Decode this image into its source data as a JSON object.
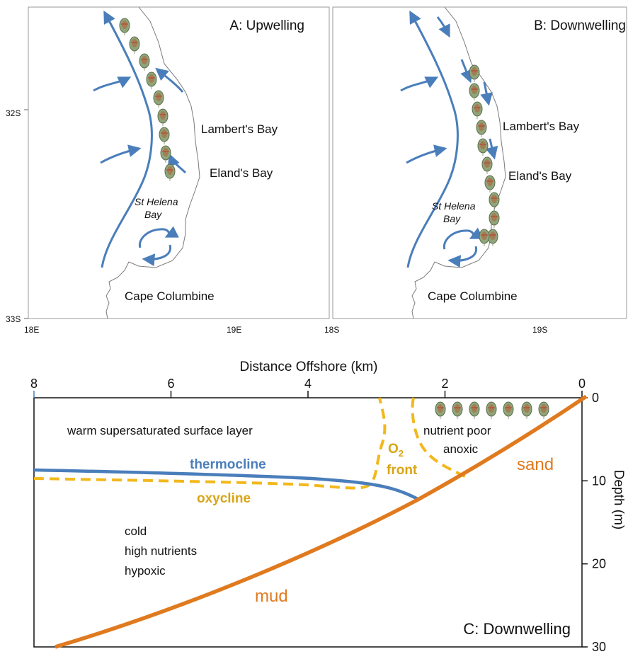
{
  "colors": {
    "current": "#4a7ebb",
    "coast": "#7a7a7a",
    "frame": "#9a9a9a",
    "thermocline": "#4a7ebb",
    "oxy": "#f2b81c",
    "label_gold": "#d9a514",
    "seabed": "#e07a1f",
    "sand_text": "#e07a1f",
    "thermo_text": "#4a7ebb"
  },
  "icons": {
    "organism": "phytoplankton-cell-icon"
  },
  "panel_a": {
    "title": "A: Upwelling",
    "lat_top": "32S",
    "lat_bottom": "33S",
    "lon_left": "18E",
    "lon_right": "19E",
    "places": {
      "lamberts": "Lambert's Bay",
      "elands": "Eland's Bay",
      "st_helena_1": "St Helena",
      "st_helena_2": "Bay",
      "cape": "Cape Columbine"
    },
    "organism_count": 9
  },
  "panel_b": {
    "title": "B: Downwelling",
    "lon_left": "18S",
    "lon_right": "19S",
    "places": {
      "lamberts": "Lambert's Bay",
      "elands": "Eland's Bay",
      "st_helena_1": "St Helena",
      "st_helena_2": "Bay",
      "cape": "Cape Columbine"
    },
    "organism_count": 11
  },
  "panel_c": {
    "title": "C: Downwelling",
    "x_axis_label": "Distance Offshore (km)",
    "x_ticks": [
      "8",
      "6",
      "4",
      "2",
      "0"
    ],
    "y_axis_label": "Depth (m)",
    "y_ticks": [
      "0",
      "10",
      "20",
      "30"
    ],
    "labels": {
      "surface": "warm supersaturated surface layer",
      "thermocline": "thermocline",
      "oxycline": "oxycline",
      "o2": "O",
      "o2_sub": "2",
      "front": "front",
      "nutrient_poor": "nutrient poor",
      "anoxic": "anoxic",
      "sand": "sand",
      "mud": "mud",
      "cold_1": "cold",
      "cold_2": "high nutrients",
      "cold_3": "hypoxic"
    },
    "organism_count": 7
  }
}
